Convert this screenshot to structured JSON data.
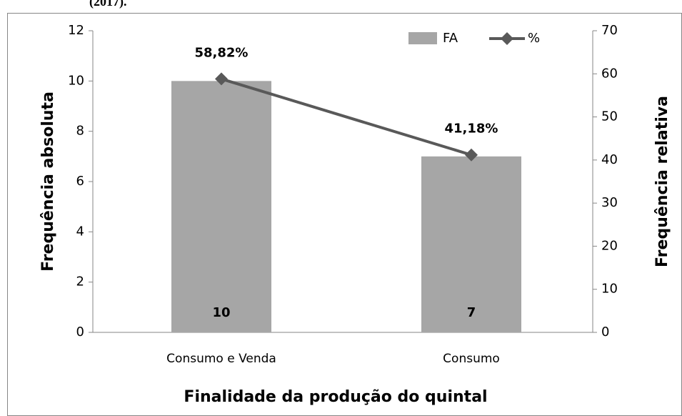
{
  "chart_data": {
    "type": "bar",
    "subtitle": "(2017).",
    "x_label": "Finalidade da produção do quintal",
    "y_label": "Frequência absoluta",
    "y2_label": "Frequência relativa",
    "categories": [
      "Consumo e Venda",
      "Consumo"
    ],
    "series": [
      {
        "name": "FA",
        "type": "bar",
        "color": "#a6a6a6",
        "values": [
          10,
          7
        ]
      },
      {
        "name": "%",
        "type": "line",
        "axis": "y2",
        "color": "#595959",
        "values": [
          58.82,
          41.18
        ],
        "value_labels": [
          "58,82%",
          "41,18%"
        ]
      }
    ],
    "ylim": [
      0,
      12
    ],
    "yticks": [
      0,
      2,
      4,
      6,
      8,
      10,
      12
    ],
    "y2lim": [
      0,
      70
    ],
    "y2ticks": [
      0,
      10,
      20,
      30,
      40,
      50,
      60,
      70
    ],
    "grid": false,
    "legend": "top-right"
  }
}
